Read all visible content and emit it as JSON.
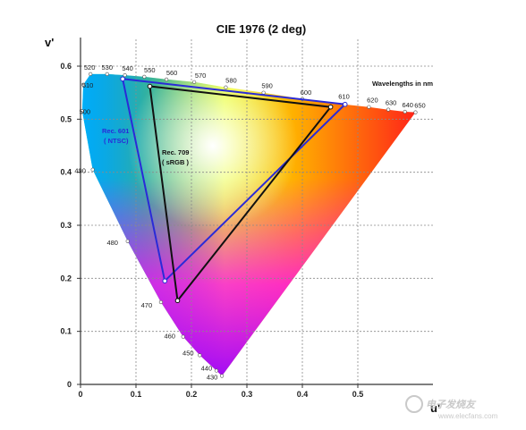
{
  "chart_data": {
    "type": "scatter",
    "title": "CIE 1976 (2 deg)",
    "xlabel": "u'",
    "ylabel": "v'",
    "xlim": [
      0,
      0.6
    ],
    "ylim": [
      0,
      0.6
    ],
    "xticks": [
      "0",
      "0.1",
      "0.2",
      "0.3",
      "0.4",
      "0.5"
    ],
    "yticks": [
      "0",
      "0.1",
      "0.2",
      "0.3",
      "0.4",
      "0.5",
      "0.6"
    ],
    "grid": true,
    "locus": [
      {
        "nm": "430",
        "u": 0.255,
        "v": 0.016
      },
      {
        "nm": "440",
        "u": 0.245,
        "v": 0.026
      },
      {
        "nm": "450",
        "u": 0.215,
        "v": 0.055
      },
      {
        "nm": "460",
        "u": 0.185,
        "v": 0.09
      },
      {
        "nm": "470",
        "u": 0.145,
        "v": 0.155
      },
      {
        "nm": "480",
        "u": 0.085,
        "v": 0.27
      },
      {
        "nm": "490",
        "u": 0.022,
        "v": 0.405
      },
      {
        "nm": "500",
        "u": 0.003,
        "v": 0.515
      },
      {
        "nm": "510",
        "u": 0.005,
        "v": 0.565
      },
      {
        "nm": "520",
        "u": 0.018,
        "v": 0.585
      },
      {
        "nm": "530",
        "u": 0.048,
        "v": 0.585
      },
      {
        "nm": "540",
        "u": 0.08,
        "v": 0.583
      },
      {
        "nm": "550",
        "u": 0.115,
        "v": 0.58
      },
      {
        "nm": "560",
        "u": 0.155,
        "v": 0.575
      },
      {
        "nm": "570",
        "u": 0.205,
        "v": 0.57
      },
      {
        "nm": "580",
        "u": 0.262,
        "v": 0.56
      },
      {
        "nm": "590",
        "u": 0.33,
        "v": 0.55
      },
      {
        "nm": "600",
        "u": 0.4,
        "v": 0.538
      },
      {
        "nm": "610",
        "u": 0.475,
        "v": 0.528
      },
      {
        "nm": "620",
        "u": 0.52,
        "v": 0.523
      },
      {
        "nm": "630",
        "u": 0.555,
        "v": 0.518
      },
      {
        "nm": "640",
        "u": 0.585,
        "v": 0.514
      },
      {
        "nm": "650",
        "u": 0.604,
        "v": 0.513
      }
    ],
    "series": [
      {
        "name": "Rec. 601 ( NTSC)",
        "color": "#2a2ad8",
        "points": [
          [
            0.076,
            0.576
          ],
          [
            0.477,
            0.528
          ],
          [
            0.152,
            0.195
          ]
        ]
      },
      {
        "name": "Rec. 709 ( sRGB )",
        "color": "#111111",
        "points": [
          [
            0.125,
            0.562
          ],
          [
            0.451,
            0.523
          ],
          [
            0.175,
            0.158
          ]
        ]
      }
    ],
    "annotations": {
      "wavelengths": "Wavelengths in nm",
      "rec601_line1": "Rec. 601",
      "rec601_line2": "( NTSC)",
      "rec709_line1": "Rec. 709",
      "rec709_line2": "( sRGB )"
    }
  },
  "watermark": {
    "text": "电子发烧友",
    "url": "www.elecfans.com"
  }
}
